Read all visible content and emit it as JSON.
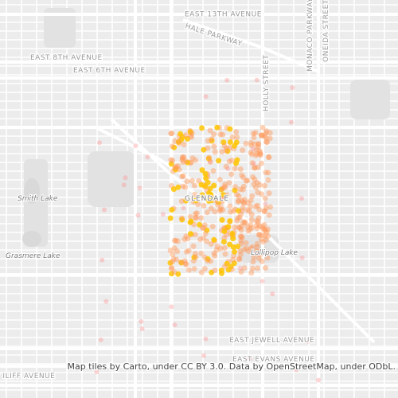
{
  "map": {
    "streets": [
      "EAST 13TH AVENUE",
      "HALE PARKWAY",
      "EAST 8TH AVENUE",
      "EAST 6TH AVENUE",
      "HOLLY STREET",
      "ONEIDA STREET",
      "MONACO PARKWAY",
      "EAST JEWELL AVENUE",
      "EAST EVANS AVENUE",
      "EAST ILIFF AVENUE"
    ],
    "places": [
      "Smith Lake",
      "Grasmere Lake",
      "GLENDALE",
      "Lollipop Lake"
    ]
  },
  "attribution": "Map tiles by Carto, under CC BY 3.0. Data by OpenStreetMap, under ODbL."
}
